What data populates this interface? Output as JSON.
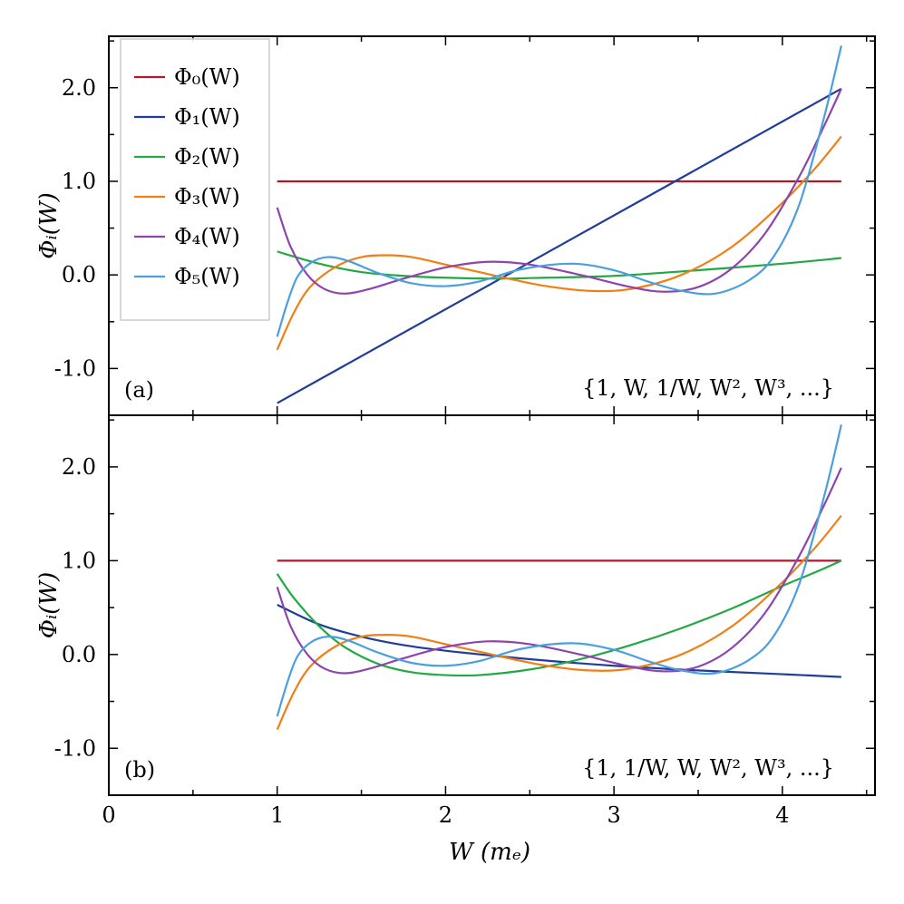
{
  "chart_data": [
    {
      "panel": "a",
      "type": "line",
      "panel_label": "(a)",
      "basis_note": "{1, W, 1/W, W², W³, ...}",
      "xlabel": "W (mₑ)",
      "ylabel": "Φᵢ(W)",
      "xlim": [
        0,
        4.55
      ],
      "ylim": [
        -1.5,
        2.55
      ],
      "xticks": [
        "0",
        "1",
        "2",
        "3",
        "4"
      ],
      "yticks": [
        "-1.0",
        "0.0",
        "1.0",
        "2.0"
      ],
      "legend_position": "top-left",
      "legend": [
        "Φ₀(W)",
        "Φ₁(W)",
        "Φ₂(W)",
        "Φ₃(W)",
        "Φ₄(W)",
        "Φ₅(W)"
      ],
      "series": [
        {
          "name": "Φ₀(W)",
          "color": "#b2182b",
          "x": [
            1.0,
            4.35
          ],
          "y": [
            1.0,
            1.0
          ]
        },
        {
          "name": "Φ₁(W)",
          "color": "#1f3d99",
          "x": [
            1.0,
            4.35
          ],
          "y": [
            -1.37,
            1.99
          ]
        },
        {
          "name": "Φ₂(W)",
          "color": "#22a845",
          "x": [
            1.0,
            1.25,
            1.5,
            1.75,
            2.0,
            2.3,
            2.6,
            3.0,
            3.5,
            4.0,
            4.35
          ],
          "y": [
            0.25,
            0.12,
            0.03,
            -0.01,
            -0.03,
            -0.04,
            -0.03,
            -0.01,
            0.05,
            0.12,
            0.18
          ]
        },
        {
          "name": "Φ₃(W)",
          "color": "#f07f16",
          "x": [
            1.0,
            1.1,
            1.2,
            1.35,
            1.5,
            1.65,
            1.8,
            2.0,
            2.2,
            2.4,
            2.6,
            2.85,
            3.1,
            3.4,
            3.7,
            4.0,
            4.2,
            4.35
          ],
          "y": [
            -0.8,
            -0.4,
            -0.12,
            0.09,
            0.19,
            0.21,
            0.19,
            0.11,
            0.03,
            -0.05,
            -0.12,
            -0.17,
            -0.15,
            0.0,
            0.3,
            0.77,
            1.15,
            1.48
          ]
        },
        {
          "name": "Φ₄(W)",
          "color": "#8e44ad",
          "x": [
            1.0,
            1.08,
            1.18,
            1.28,
            1.4,
            1.55,
            1.75,
            2.0,
            2.25,
            2.5,
            2.8,
            3.1,
            3.3,
            3.5,
            3.7,
            3.9,
            4.1,
            4.25,
            4.35
          ],
          "y": [
            0.72,
            0.3,
            0.0,
            -0.15,
            -0.2,
            -0.15,
            -0.04,
            0.08,
            0.14,
            0.11,
            0.0,
            -0.13,
            -0.18,
            -0.13,
            0.07,
            0.45,
            1.05,
            1.6,
            1.99
          ]
        },
        {
          "name": "Φ₅(W)",
          "color": "#4a9fe0",
          "x": [
            1.0,
            1.06,
            1.12,
            1.2,
            1.3,
            1.42,
            1.6,
            1.8,
            2.0,
            2.2,
            2.45,
            2.75,
            3.0,
            3.2,
            3.4,
            3.6,
            3.8,
            3.95,
            4.1,
            4.25,
            4.35
          ],
          "y": [
            -0.66,
            -0.3,
            -0.02,
            0.13,
            0.19,
            0.15,
            0.02,
            -0.09,
            -0.12,
            -0.07,
            0.06,
            0.12,
            0.05,
            -0.07,
            -0.17,
            -0.2,
            -0.06,
            0.2,
            0.75,
            1.7,
            2.45
          ]
        }
      ]
    },
    {
      "panel": "b",
      "type": "line",
      "panel_label": "(b)",
      "basis_note": "{1, 1/W, W, W², W³, ...}",
      "xlabel": "W (mₑ)",
      "ylabel": "Φᵢ(W)",
      "xlim": [
        0,
        4.55
      ],
      "ylim": [
        -1.5,
        2.55
      ],
      "xticks": [
        "0",
        "1",
        "2",
        "3",
        "4"
      ],
      "yticks": [
        "-1.0",
        "0.0",
        "1.0",
        "2.0"
      ],
      "series": [
        {
          "name": "Φ₀(W)",
          "color": "#b2182b",
          "x": [
            1.0,
            4.35
          ],
          "y": [
            1.0,
            1.0
          ]
        },
        {
          "name": "Φ₁(W)",
          "color": "#1f3d99",
          "x": [
            1.0,
            1.25,
            1.5,
            1.75,
            2.0,
            2.5,
            3.0,
            3.5,
            4.0,
            4.35
          ],
          "y": [
            0.53,
            0.32,
            0.19,
            0.1,
            0.04,
            -0.05,
            -0.12,
            -0.17,
            -0.21,
            -0.24
          ]
        },
        {
          "name": "Φ₂(W)",
          "color": "#22a845",
          "x": [
            1.0,
            1.1,
            1.25,
            1.4,
            1.6,
            1.8,
            2.0,
            2.2,
            2.5,
            2.8,
            3.1,
            3.4,
            3.7,
            4.0,
            4.2,
            4.35
          ],
          "y": [
            0.86,
            0.6,
            0.3,
            0.08,
            -0.1,
            -0.19,
            -0.22,
            -0.22,
            -0.16,
            -0.05,
            0.1,
            0.28,
            0.49,
            0.73,
            0.88,
            1.0
          ]
        },
        {
          "name": "Φ₃(W)",
          "color": "#f07f16",
          "x": [
            1.0,
            1.1,
            1.2,
            1.35,
            1.5,
            1.65,
            1.8,
            2.0,
            2.2,
            2.4,
            2.6,
            2.85,
            3.1,
            3.4,
            3.7,
            4.0,
            4.2,
            4.35
          ],
          "y": [
            -0.8,
            -0.4,
            -0.12,
            0.09,
            0.19,
            0.21,
            0.19,
            0.11,
            0.03,
            -0.05,
            -0.12,
            -0.17,
            -0.15,
            0.0,
            0.3,
            0.77,
            1.15,
            1.48
          ]
        },
        {
          "name": "Φ₄(W)",
          "color": "#8e44ad",
          "x": [
            1.0,
            1.08,
            1.18,
            1.28,
            1.4,
            1.55,
            1.75,
            2.0,
            2.25,
            2.5,
            2.8,
            3.1,
            3.3,
            3.5,
            3.7,
            3.9,
            4.1,
            4.25,
            4.35
          ],
          "y": [
            0.72,
            0.3,
            0.0,
            -0.15,
            -0.2,
            -0.15,
            -0.04,
            0.08,
            0.14,
            0.11,
            0.0,
            -0.13,
            -0.18,
            -0.13,
            0.07,
            0.45,
            1.05,
            1.6,
            1.99
          ]
        },
        {
          "name": "Φ₅(W)",
          "color": "#4a9fe0",
          "x": [
            1.0,
            1.06,
            1.12,
            1.2,
            1.3,
            1.42,
            1.6,
            1.8,
            2.0,
            2.2,
            2.45,
            2.75,
            3.0,
            3.2,
            3.4,
            3.6,
            3.8,
            3.95,
            4.1,
            4.25,
            4.35
          ],
          "y": [
            -0.66,
            -0.3,
            -0.02,
            0.13,
            0.19,
            0.15,
            0.02,
            -0.09,
            -0.12,
            -0.07,
            0.06,
            0.12,
            0.05,
            -0.07,
            -0.17,
            -0.2,
            -0.06,
            0.2,
            0.75,
            1.7,
            2.45
          ]
        }
      ]
    }
  ]
}
